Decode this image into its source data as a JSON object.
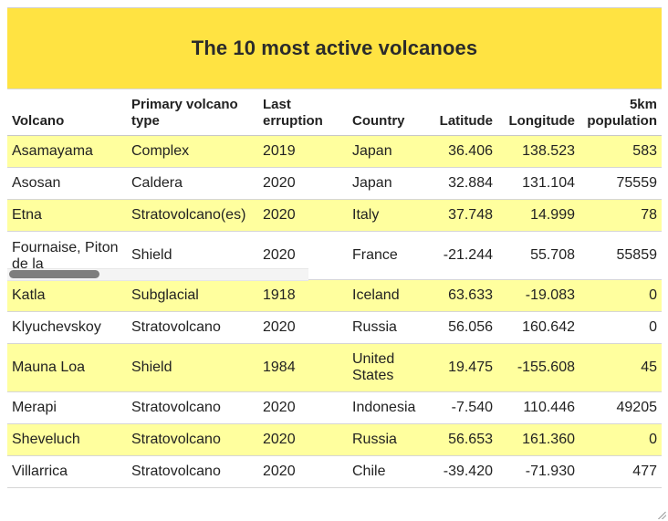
{
  "title": "The 10 most active volcanoes",
  "columns": {
    "volcano": "Volcano",
    "type_line1": "Primary volcano",
    "type_line2": "type",
    "erupt_line1": "Last",
    "erupt_line2": "erruption",
    "country": "Country",
    "latitude": "Latitude",
    "longitude": "Longitude",
    "pop_line1": "5km",
    "pop_line2": "population"
  },
  "rows": [
    {
      "volcano": "Asamayama",
      "type": "Complex",
      "erupt": "2019",
      "country": "Japan",
      "lat": "36.406",
      "lon": "138.523",
      "pop": "583"
    },
    {
      "volcano": "Asosan",
      "type": "Caldera",
      "erupt": "2020",
      "country": "Japan",
      "lat": "32.884",
      "lon": "131.104",
      "pop": "75559"
    },
    {
      "volcano": "Etna",
      "type": "Stratovolcano(es)",
      "erupt": "2020",
      "country": "Italy",
      "lat": "37.748",
      "lon": "14.999",
      "pop": "78"
    },
    {
      "volcano": "Fournaise, Piton de la",
      "type": "Shield",
      "erupt": "2020",
      "country": "France",
      "lat": "-21.244",
      "lon": "55.708",
      "pop": "55859"
    },
    {
      "volcano": "Katla",
      "type": "Subglacial",
      "erupt": "1918",
      "country": "Iceland",
      "lat": "63.633",
      "lon": "-19.083",
      "pop": "0"
    },
    {
      "volcano": "Klyuchevskoy",
      "type": "Stratovolcano",
      "erupt": "2020",
      "country": "Russia",
      "lat": "56.056",
      "lon": "160.642",
      "pop": "0"
    },
    {
      "volcano": "Mauna Loa",
      "type": "Shield",
      "erupt": "1984",
      "country": "United States",
      "lat": "19.475",
      "lon": "-155.608",
      "pop": "45"
    },
    {
      "volcano": "Merapi",
      "type": "Stratovolcano",
      "erupt": "2020",
      "country": "Indonesia",
      "lat": "-7.540",
      "lon": "110.446",
      "pop": "49205"
    },
    {
      "volcano": "Sheveluch",
      "type": "Stratovolcano",
      "erupt": "2020",
      "country": "Russia",
      "lat": "56.653",
      "lon": "161.360",
      "pop": "0"
    },
    {
      "volcano": "Villarrica",
      "type": "Stratovolcano",
      "erupt": "2020",
      "country": "Chile",
      "lat": "-39.420",
      "lon": "-71.930",
      "pop": "477"
    }
  ],
  "colors": {
    "title_bg": "#ffe342",
    "row_highlight": "#ffff9e",
    "text": "#222222"
  }
}
